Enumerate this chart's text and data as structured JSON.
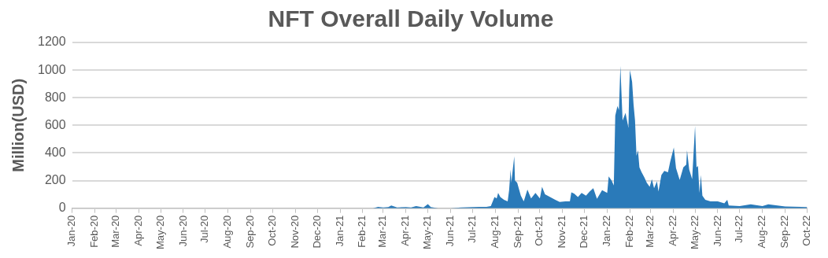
{
  "chart_data": {
    "type": "area",
    "title": "NFT Overall Daily Volume",
    "ylabel": "Million(USD)",
    "x": [
      "2021-02-15",
      "2021-02-22",
      "2021-03-01",
      "2021-03-08",
      "2021-03-12",
      "2021-03-20",
      "2021-04-01",
      "2021-04-08",
      "2021-04-15",
      "2021-04-25",
      "2021-05-01",
      "2021-05-05",
      "2021-05-15",
      "2021-06-01",
      "2021-06-15",
      "2021-07-01",
      "2021-07-10",
      "2021-07-20",
      "2021-07-26",
      "2021-07-31",
      "2021-08-03",
      "2021-08-05",
      "2021-08-08",
      "2021-08-13",
      "2021-08-18",
      "2021-08-20",
      "2021-08-22",
      "2021-08-23",
      "2021-08-27",
      "2021-08-28",
      "2021-08-31",
      "2021-09-05",
      "2021-09-09",
      "2021-09-14",
      "2021-09-19",
      "2021-09-25",
      "2021-10-01",
      "2021-10-04",
      "2021-10-08",
      "2021-10-15",
      "2021-10-22",
      "2021-10-28",
      "2021-11-05",
      "2021-11-11",
      "2021-11-13",
      "2021-11-17",
      "2021-11-22",
      "2021-11-27",
      "2021-12-03",
      "2021-12-08",
      "2021-12-13",
      "2021-12-18",
      "2021-12-25",
      "2022-01-01",
      "2022-01-03",
      "2022-01-07",
      "2022-01-10",
      "2022-01-12",
      "2022-01-15",
      "2022-01-17",
      "2022-01-19",
      "2022-01-22",
      "2022-01-26",
      "2022-01-30",
      "2022-01-31",
      "2022-02-01",
      "2022-02-04",
      "2022-02-06",
      "2022-02-08",
      "2022-02-10",
      "2022-02-12",
      "2022-02-14",
      "2022-02-17",
      "2022-02-21",
      "2022-02-24",
      "2022-02-28",
      "2022-03-03",
      "2022-03-06",
      "2022-03-10",
      "2022-03-12",
      "2022-03-16",
      "2022-03-20",
      "2022-03-25",
      "2022-03-28",
      "2022-04-02",
      "2022-04-05",
      "2022-04-10",
      "2022-04-15",
      "2022-04-19",
      "2022-04-20",
      "2022-04-23",
      "2022-04-27",
      "2022-05-01",
      "2022-05-03",
      "2022-05-05",
      "2022-05-07",
      "2022-05-09",
      "2022-05-11",
      "2022-05-15",
      "2022-05-22",
      "2022-06-01",
      "2022-06-10",
      "2022-06-14",
      "2022-06-16",
      "2022-07-01",
      "2022-07-16",
      "2022-08-01",
      "2022-08-09",
      "2022-09-01",
      "2022-10-01"
    ],
    "series": [
      {
        "color": "#2a7ab9",
        "values": [
          0,
          10,
          5,
          8,
          20,
          5,
          8,
          5,
          15,
          5,
          30,
          8,
          0,
          0,
          5,
          8,
          10,
          10,
          15,
          80,
          70,
          110,
          80,
          60,
          50,
          130,
          280,
          185,
          375,
          200,
          185,
          90,
          50,
          135,
          70,
          110,
          70,
          155,
          100,
          80,
          60,
          45,
          50,
          50,
          115,
          105,
          80,
          110,
          90,
          120,
          145,
          68,
          130,
          110,
          230,
          200,
          165,
          670,
          740,
          710,
          1030,
          635,
          690,
          580,
          860,
          1000,
          915,
          750,
          635,
          380,
          420,
          295,
          260,
          220,
          185,
          155,
          210,
          145,
          195,
          120,
          240,
          270,
          260,
          335,
          440,
          290,
          205,
          295,
          315,
          420,
          280,
          210,
          595,
          295,
          305,
          110,
          240,
          90,
          60,
          50,
          50,
          35,
          60,
          20,
          15,
          28,
          15,
          28,
          12,
          8
        ]
      }
    ],
    "xlim": [
      "2020-01-01",
      "2022-10-01"
    ],
    "xticks": [
      {
        "value": "2020-01-01",
        "label": "Jan-20"
      },
      {
        "value": "2020-02-01",
        "label": "Feb-20"
      },
      {
        "value": "2020-03-01",
        "label": "Mar-20"
      },
      {
        "value": "2020-04-01",
        "label": "Apr-20"
      },
      {
        "value": "2020-05-01",
        "label": "May-20"
      },
      {
        "value": "2020-06-01",
        "label": "Jun-20"
      },
      {
        "value": "2020-07-01",
        "label": "Jul-20"
      },
      {
        "value": "2020-08-01",
        "label": "Aug-20"
      },
      {
        "value": "2020-09-01",
        "label": "Sep-20"
      },
      {
        "value": "2020-10-01",
        "label": "Oct-20"
      },
      {
        "value": "2020-11-01",
        "label": "Nov-20"
      },
      {
        "value": "2020-12-01",
        "label": "Dec-20"
      },
      {
        "value": "2021-01-01",
        "label": "Jan-21"
      },
      {
        "value": "2021-02-01",
        "label": "Feb-21"
      },
      {
        "value": "2021-03-01",
        "label": "Mar-21"
      },
      {
        "value": "2021-04-01",
        "label": "Apr-21"
      },
      {
        "value": "2021-05-01",
        "label": "May-21"
      },
      {
        "value": "2021-06-01",
        "label": "Jun-21"
      },
      {
        "value": "2021-07-01",
        "label": "Jul-21"
      },
      {
        "value": "2021-08-01",
        "label": "Aug-21"
      },
      {
        "value": "2021-09-01",
        "label": "Sep-21"
      },
      {
        "value": "2021-10-01",
        "label": "Oct-21"
      },
      {
        "value": "2021-11-01",
        "label": "Nov-21"
      },
      {
        "value": "2021-12-01",
        "label": "Dec-21"
      },
      {
        "value": "2022-01-01",
        "label": "Jan-22"
      },
      {
        "value": "2022-02-01",
        "label": "Feb-22"
      },
      {
        "value": "2022-03-01",
        "label": "Mar-22"
      },
      {
        "value": "2022-04-01",
        "label": "Apr-22"
      },
      {
        "value": "2022-05-01",
        "label": "May-22"
      },
      {
        "value": "2022-06-01",
        "label": "Jun-22"
      },
      {
        "value": "2022-07-01",
        "label": "Jul-22"
      },
      {
        "value": "2022-08-01",
        "label": "Aug-22"
      },
      {
        "value": "2022-09-01",
        "label": "Sep-22"
      },
      {
        "value": "2022-10-01",
        "label": "Oct-22"
      }
    ],
    "ylim": [
      0,
      1200
    ],
    "yticks": [
      0,
      200,
      400,
      600,
      800,
      1000,
      1200
    ],
    "grid": "y",
    "legend": false
  }
}
